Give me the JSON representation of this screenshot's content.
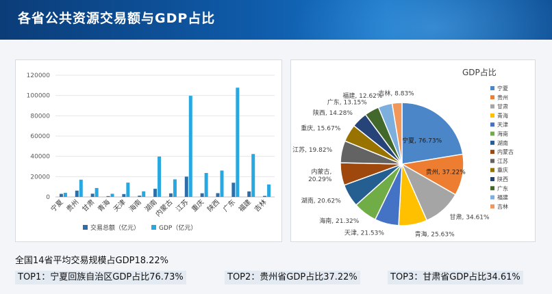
{
  "header": {
    "title": "各省公共资源交易额与GDP占比"
  },
  "colors": {
    "trade": "#2e6ea8",
    "gdp": "#27a8e0"
  },
  "chart_data": [
    {
      "type": "bar",
      "categories": [
        "宁夏",
        "贵州",
        "甘肃",
        "青海",
        "天津",
        "海南",
        "湖南",
        "内蒙古",
        "江苏",
        "重庆",
        "陕西",
        "广东",
        "福建",
        "吉林"
      ],
      "ylim": [
        0,
        120000
      ],
      "yticks": [
        0,
        20000,
        40000,
        60000,
        80000,
        100000,
        120000
      ],
      "ytick_labels": [
        "0",
        "20000",
        "40000",
        "60000",
        "80000",
        "100000",
        "120000"
      ],
      "grid": true,
      "legend_position": "bottom",
      "series": [
        {
          "name": "交易总额（亿元）",
          "color": "#2e6ea8",
          "values": [
            3000,
            6200,
            3200,
            800,
            2800,
            1200,
            8000,
            3500,
            20000,
            3600,
            3700,
            14000,
            5400,
            1000
          ]
        },
        {
          "name": "GDP（亿元）",
          "color": "#27a8e0",
          "values": [
            4000,
            17000,
            8800,
            3100,
            14100,
            5500,
            39800,
            17300,
            99700,
            23600,
            26000,
            107700,
            42300,
            12300
          ]
        }
      ]
    },
    {
      "type": "pie",
      "title": "GDP占比",
      "legend_position": "right",
      "slices": [
        {
          "label": "宁夏",
          "value": 76.73,
          "value_label": "76.73%",
          "color": "#4a86c8"
        },
        {
          "label": "贵州",
          "value": 37.22,
          "value_label": "37.22%",
          "color": "#ed7d31"
        },
        {
          "label": "甘肃",
          "value": 34.61,
          "value_label": "34.61%",
          "color": "#a5a5a5"
        },
        {
          "label": "青海",
          "value": 25.63,
          "value_label": "25.63%",
          "color": "#ffc000"
        },
        {
          "label": "天津",
          "value": 21.53,
          "value_label": "21.53%",
          "color": "#4472c4"
        },
        {
          "label": "海南",
          "value": 21.32,
          "value_label": "21.32%",
          "color": "#70ad47"
        },
        {
          "label": "湖南",
          "value": 20.62,
          "value_label": "20.62%",
          "color": "#255e91"
        },
        {
          "label": "内蒙古",
          "value": 20.29,
          "value_label": "20.29%",
          "color": "#9e480e"
        },
        {
          "label": "江苏",
          "value": 19.82,
          "value_label": "19.82%",
          "color": "#636363"
        },
        {
          "label": "重庆",
          "value": 15.67,
          "value_label": "15.67%",
          "color": "#997300"
        },
        {
          "label": "陕西",
          "value": 14.28,
          "value_label": "14.28%",
          "color": "#264478"
        },
        {
          "label": "广东",
          "value": 13.15,
          "value_label": "13.15%",
          "color": "#43682b"
        },
        {
          "label": "福建",
          "value": 12.62,
          "value_label": "12.62%",
          "color": "#7cafdd"
        },
        {
          "label": "吉林",
          "value": 8.83,
          "value_label": "8.83%",
          "color": "#f1975a"
        }
      ]
    }
  ],
  "summary": {
    "text": "全国14省平均交易规模占GDP18.22%"
  },
  "tops": [
    {
      "text": "TOP1：宁夏回族自治区GDP占比76.73%"
    },
    {
      "text": "TOP2：贵州省GDP占比37.22%"
    },
    {
      "text": "TOP3：甘肃省GDP占比34.61%"
    }
  ]
}
